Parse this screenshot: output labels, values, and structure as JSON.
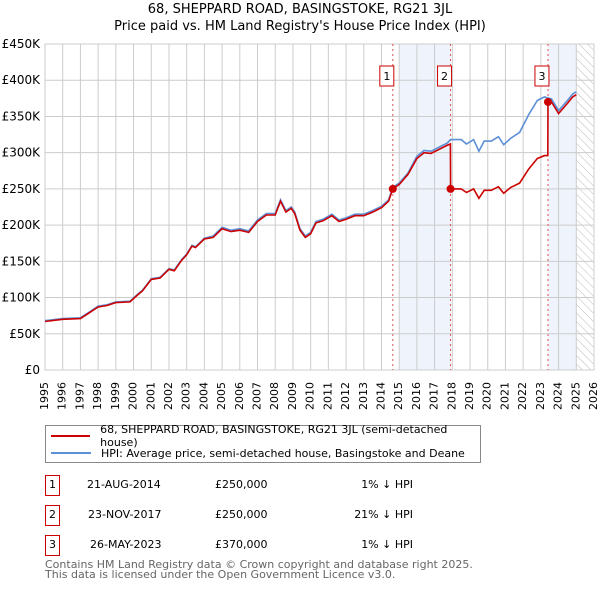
{
  "title": "68, SHEPPARD ROAD, BASINGSTOKE, RG21 3JL",
  "subtitle": "Price paid vs. HM Land Registry's House Price Index (HPI)",
  "chart_data": {
    "type": "line",
    "title": "68, SHEPPARD ROAD, BASINGSTOKE, RG21 3JL — Price paid vs. HM Land Registry's House Price Index (HPI)",
    "xlim": [
      1995,
      2026
    ],
    "ylim": [
      0,
      450000
    ],
    "xticks": [
      "1995",
      "1996",
      "1997",
      "1998",
      "1999",
      "2000",
      "2001",
      "2002",
      "2003",
      "2004",
      "2005",
      "2006",
      "2007",
      "2008",
      "2009",
      "2010",
      "2011",
      "2012",
      "2013",
      "2014",
      "2015",
      "2016",
      "2017",
      "2018",
      "2019",
      "2020",
      "2021",
      "2022",
      "2023",
      "2024",
      "2025",
      "2026"
    ],
    "yticks": [
      {
        "v": 0,
        "l": "£0"
      },
      {
        "v": 50000,
        "l": "£50K"
      },
      {
        "v": 100000,
        "l": "£100K"
      },
      {
        "v": 150000,
        "l": "£150K"
      },
      {
        "v": 200000,
        "l": "£200K"
      },
      {
        "v": 250000,
        "l": "£250K"
      },
      {
        "v": 300000,
        "l": "£300K"
      },
      {
        "v": 350000,
        "l": "£350K"
      },
      {
        "v": 400000,
        "l": "£400K"
      },
      {
        "v": 450000,
        "l": "£450K"
      }
    ],
    "grid": true,
    "shaded_ranges": [
      [
        2015.0,
        2017.9
      ],
      [
        2023.4,
        2025.0
      ]
    ],
    "hatched_from": 2025.0,
    "series": [
      {
        "name": "HPI: Average price, semi-detached house, Basingstoke and Deane",
        "color": "#5b8fd6",
        "x": [
          1995,
          1996,
          1997,
          1997.5,
          1998,
          1998.5,
          1999,
          1999.8,
          2000.2,
          2000.5,
          2001,
          2001.5,
          2002,
          2002.3,
          2002.7,
          2003,
          2003.3,
          2003.5,
          2004,
          2004.5,
          2005,
          2005.5,
          2006,
          2006.5,
          2007,
          2007.5,
          2008,
          2008.3,
          2008.6,
          2008.9,
          2009.1,
          2009.4,
          2009.7,
          2010,
          2010.3,
          2010.7,
          2011.2,
          2011.6,
          2012,
          2012.5,
          2013,
          2013.5,
          2014,
          2014.4,
          2014.64,
          2015,
          2015.5,
          2016,
          2016.4,
          2016.8,
          2017.2,
          2017.7,
          2017.9,
          2018.5,
          2018.8,
          2019.2,
          2019.5,
          2019.8,
          2020.2,
          2020.6,
          2020.9,
          2021.3,
          2021.8,
          2022.3,
          2022.8,
          2023.2,
          2023.6,
          2024,
          2024.5,
          2024.8,
          2025
        ],
        "y": [
          68000,
          71000,
          72000,
          80000,
          88000,
          90000,
          94000,
          95000,
          104000,
          110000,
          126000,
          128000,
          140000,
          138000,
          152000,
          160000,
          172000,
          170000,
          182000,
          185000,
          197000,
          193000,
          195000,
          192000,
          207000,
          216000,
          216000,
          235000,
          220000,
          225000,
          218000,
          195000,
          185000,
          190000,
          205000,
          208000,
          215000,
          207000,
          210000,
          215000,
          215000,
          220000,
          226000,
          235000,
          252000,
          258000,
          272000,
          295000,
          303000,
          302000,
          307000,
          313000,
          318000,
          318000,
          312000,
          318000,
          302000,
          316000,
          316000,
          322000,
          311000,
          320000,
          328000,
          352000,
          372000,
          377000,
          374000,
          358000,
          372000,
          381000,
          384000
        ]
      },
      {
        "name": "68, SHEPPARD ROAD, BASINGSTOKE, RG21 3JL (semi-detached house)",
        "color": "#cc0000",
        "x": [
          1995,
          1996,
          1997,
          1997.5,
          1998,
          1998.5,
          1999,
          1999.8,
          2000.2,
          2000.5,
          2001,
          2001.5,
          2002,
          2002.3,
          2002.7,
          2003,
          2003.3,
          2003.5,
          2004,
          2004.5,
          2005,
          2005.5,
          2006,
          2006.5,
          2007,
          2007.5,
          2008,
          2008.3,
          2008.6,
          2008.9,
          2009.1,
          2009.4,
          2009.7,
          2010,
          2010.3,
          2010.7,
          2011.2,
          2011.6,
          2012,
          2012.5,
          2013,
          2013.5,
          2014,
          2014.4,
          2014.64,
          2015,
          2015.5,
          2016,
          2016.4,
          2016.8,
          2017.2,
          2017.7,
          2017.89,
          2017.9,
          2018.5,
          2018.8,
          2019.2,
          2019.5,
          2019.8,
          2020.2,
          2020.6,
          2020.9,
          2021.3,
          2021.8,
          2022.3,
          2022.8,
          2023.2,
          2023.39,
          2023.4,
          2023.6,
          2024,
          2024.5,
          2024.8,
          2025
        ],
        "y": [
          67000,
          70000,
          71000,
          79000,
          87000,
          89000,
          93000,
          94000,
          103000,
          109000,
          125000,
          127000,
          139000,
          137000,
          151000,
          159000,
          171000,
          169000,
          181000,
          183000,
          195000,
          191000,
          193000,
          190000,
          205000,
          214000,
          214000,
          233000,
          218000,
          223000,
          216000,
          193000,
          183000,
          188000,
          203000,
          206000,
          213000,
          205000,
          208000,
          213000,
          213000,
          218000,
          224000,
          233000,
          250000,
          256000,
          270000,
          292000,
          300000,
          299000,
          304000,
          310000,
          312000,
          250000,
          250000,
          245000,
          250000,
          237000,
          248000,
          248000,
          253000,
          244000,
          252000,
          258000,
          277000,
          292000,
          296000,
          296000,
          370000,
          370000,
          354000,
          368000,
          377000,
          380000
        ]
      }
    ],
    "sales": [
      {
        "label": "1",
        "x": 2014.64,
        "y": 250000,
        "date": "21-AUG-2014",
        "price": "£250,000",
        "hpi": "1% ↓ HPI"
      },
      {
        "label": "2",
        "x": 2017.9,
        "y": 250000,
        "date": "23-NOV-2017",
        "price": "£250,000",
        "hpi": "21% ↓ HPI"
      },
      {
        "label": "3",
        "x": 2023.4,
        "y": 370000,
        "date": "26-MAY-2023",
        "price": "£370,000",
        "hpi": "1% ↓ HPI"
      }
    ]
  },
  "legend": {
    "property": "68, SHEPPARD ROAD, BASINGSTOKE, RG21 3JL (semi-detached house)",
    "hpi": "HPI: Average price, semi-detached house, Basingstoke and Deane"
  },
  "footer": {
    "line1": "Contains HM Land Registry data © Crown copyright and database right 2025.",
    "line2": "This data is licensed under the Open Government Licence v3.0."
  }
}
